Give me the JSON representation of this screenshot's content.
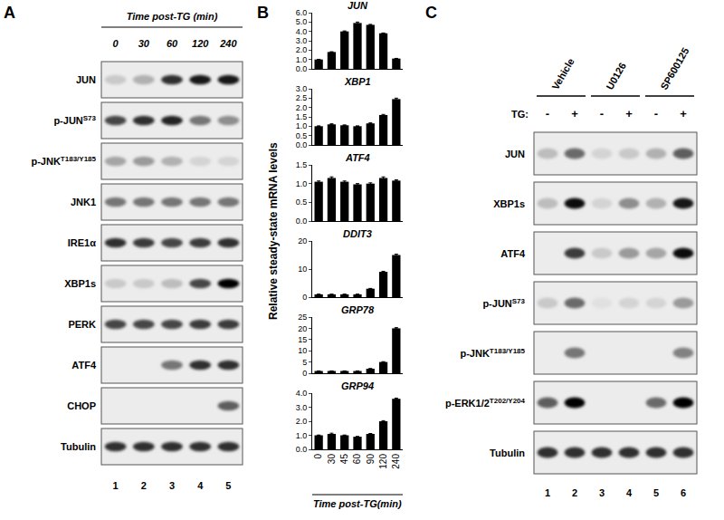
{
  "panel_labels": [
    "A",
    "B",
    "C"
  ],
  "panel_a": {
    "header": "Time post-TG (min)",
    "lanes": [
      "0",
      "30",
      "60",
      "120",
      "240"
    ],
    "lane_numbers": [
      1,
      2,
      3,
      4,
      5
    ],
    "rows": [
      {
        "label": "JUN",
        "intensity": [
          0.15,
          0.25,
          0.8,
          0.9,
          0.9
        ]
      },
      {
        "label": "p-JUN",
        "sup": "S73",
        "intensity": [
          0.7,
          0.8,
          0.85,
          0.5,
          0.4
        ]
      },
      {
        "label": "p-JNK",
        "sup": "T183/Y185",
        "intensity": [
          0.3,
          0.35,
          0.25,
          0.1,
          0.1
        ]
      },
      {
        "label": "JNK1",
        "intensity": [
          0.5,
          0.5,
          0.5,
          0.5,
          0.5
        ]
      },
      {
        "label": "IRE1α",
        "intensity": [
          0.8,
          0.75,
          0.7,
          0.75,
          0.8
        ]
      },
      {
        "label": "XBP1s",
        "intensity": [
          0.15,
          0.15,
          0.2,
          0.7,
          1.0
        ]
      },
      {
        "label": "PERK",
        "intensity": [
          0.7,
          0.7,
          0.7,
          0.75,
          0.75
        ]
      },
      {
        "label": "ATF4",
        "intensity": [
          0,
          0,
          0.5,
          0.8,
          0.8
        ]
      },
      {
        "label": "CHOP",
        "intensity": [
          0,
          0,
          0,
          0,
          0.6
        ]
      },
      {
        "label": "Tubulin",
        "intensity": [
          0.8,
          0.8,
          0.8,
          0.8,
          0.8
        ]
      }
    ]
  },
  "panel_b": {
    "y_label": "Relative steady-state mRNA levels",
    "x_label": "Time post-TG(min)"
  },
  "chart_data": [
    {
      "type": "bar",
      "title": "JUN",
      "color": "#000000",
      "tick_labels": "y",
      "categories": [
        "0",
        "30",
        "45",
        "60",
        "90",
        "120",
        "240"
      ],
      "values": [
        1.0,
        1.8,
        4.0,
        4.9,
        4.7,
        3.8,
        1.1
      ],
      "errors": [
        0.02,
        0.03,
        0.05,
        0.1,
        0.05,
        0.03,
        0.02
      ],
      "ylim": [
        0,
        6
      ],
      "yticks": [
        {
          "value": 0,
          "label": "0.0"
        },
        {
          "value": 1,
          "label": "1.0"
        },
        {
          "value": 2,
          "label": "2.0"
        },
        {
          "value": 3,
          "label": "3.0"
        },
        {
          "value": 4,
          "label": "4.0"
        },
        {
          "value": 5,
          "label": "5.0"
        },
        {
          "value": 6,
          "label": "6.0"
        }
      ]
    },
    {
      "type": "bar",
      "title": "XBP1",
      "color": "#000000",
      "tick_labels": "y",
      "categories": [
        "0",
        "30",
        "45",
        "60",
        "90",
        "120",
        "240"
      ],
      "values": [
        1.0,
        1.1,
        1.05,
        1.0,
        1.15,
        1.6,
        2.45
      ],
      "errors": [
        0.02,
        0.03,
        0.02,
        0.02,
        0.03,
        0.03,
        0.05
      ],
      "ylim": [
        0,
        3
      ],
      "yticks": [
        {
          "value": 0,
          "label": "0.0"
        },
        0.5,
        {
          "value": 1,
          "label": "1.0"
        },
        1.5,
        {
          "value": 2,
          "label": "2.0"
        },
        2.5,
        {
          "value": 3,
          "label": "3.0"
        }
      ]
    },
    {
      "type": "bar",
      "title": "ATF4",
      "color": "#000000",
      "tick_labels": "y",
      "categories": [
        "0",
        "30",
        "45",
        "60",
        "90",
        "120",
        "240"
      ],
      "values": [
        1.05,
        1.15,
        1.05,
        0.98,
        1.0,
        1.15,
        1.08
      ],
      "errors": [
        0.02,
        0.03,
        0.02,
        0.02,
        0.02,
        0.03,
        0.02
      ],
      "ylim": [
        0,
        1.5
      ],
      "yticks": [
        {
          "value": 0,
          "label": "0.0"
        },
        0.5,
        {
          "value": 1,
          "label": "1.0"
        },
        1.5
      ]
    },
    {
      "type": "bar",
      "title": "DDIT3",
      "color": "#000000",
      "tick_labels": "y",
      "categories": [
        "0",
        "30",
        "45",
        "60",
        "90",
        "120",
        "240"
      ],
      "values": [
        1,
        1,
        1,
        1,
        3,
        9,
        15
      ],
      "errors": [
        0.05,
        0.05,
        0.05,
        0.05,
        0.1,
        0.2,
        0.3
      ],
      "ylim": [
        0,
        20
      ],
      "yticks": [
        0,
        10,
        20
      ]
    },
    {
      "type": "bar",
      "title": "GRP78",
      "color": "#000000",
      "tick_labels": "y",
      "categories": [
        "0",
        "30",
        "45",
        "60",
        "90",
        "120",
        "240"
      ],
      "values": [
        1,
        1,
        1,
        1,
        2,
        5,
        20
      ],
      "errors": [
        0.05,
        0.05,
        0.05,
        0.05,
        0.1,
        0.15,
        0.3
      ],
      "ylim": [
        0,
        25
      ],
      "yticks": [
        0,
        5,
        10,
        15,
        20,
        25
      ]
    },
    {
      "type": "bar",
      "title": "GRP94",
      "color": "#000000",
      "categories": [
        "0",
        "30",
        "45",
        "60",
        "90",
        "120",
        "240"
      ],
      "values": [
        1.0,
        1.1,
        1.0,
        0.9,
        1.1,
        2.0,
        3.6
      ],
      "errors": [
        0.02,
        0.05,
        0.02,
        0.02,
        0.03,
        0.04,
        0.05
      ],
      "ylim": [
        0,
        4
      ],
      "yticks": [
        {
          "value": 0,
          "label": "0.0"
        },
        {
          "value": 1,
          "label": "1.0"
        },
        {
          "value": 2,
          "label": "2.0"
        },
        {
          "value": 3,
          "label": "3.0"
        },
        {
          "value": 4,
          "label": "4.0"
        }
      ]
    }
  ],
  "panel_c": {
    "groups": [
      "Vehicle",
      "U0126",
      "SP600125"
    ],
    "treatment_label": "TG:",
    "treatment": [
      "-",
      "+",
      "-",
      "+",
      "-",
      "+"
    ],
    "lane_numbers": [
      1,
      2,
      3,
      4,
      5,
      6
    ],
    "rows": [
      {
        "label": "JUN",
        "intensity": [
          0.2,
          0.55,
          0.1,
          0.15,
          0.25,
          0.6
        ]
      },
      {
        "label": "XBP1s",
        "intensity": [
          0.2,
          0.95,
          0.1,
          0.4,
          0.25,
          0.9
        ]
      },
      {
        "label": "ATF4",
        "intensity": [
          0,
          0.75,
          0.15,
          0.35,
          0.3,
          0.95
        ]
      },
      {
        "label": "p-JUN",
        "sup": "S73",
        "intensity": [
          0.15,
          0.55,
          0.05,
          0.1,
          0.1,
          0.35
        ]
      },
      {
        "label": "p-JNK",
        "sup": "T183/Y185",
        "intensity": [
          0,
          0.5,
          0,
          0,
          0,
          0.45
        ]
      },
      {
        "label": "p-ERK1/2",
        "sup": "T202/Y204",
        "intensity": [
          0.6,
          1.0,
          0,
          0,
          0.55,
          1.0
        ]
      },
      {
        "label": "Tubulin",
        "intensity": [
          0.8,
          0.8,
          0.8,
          0.8,
          0.8,
          0.8
        ]
      }
    ]
  }
}
